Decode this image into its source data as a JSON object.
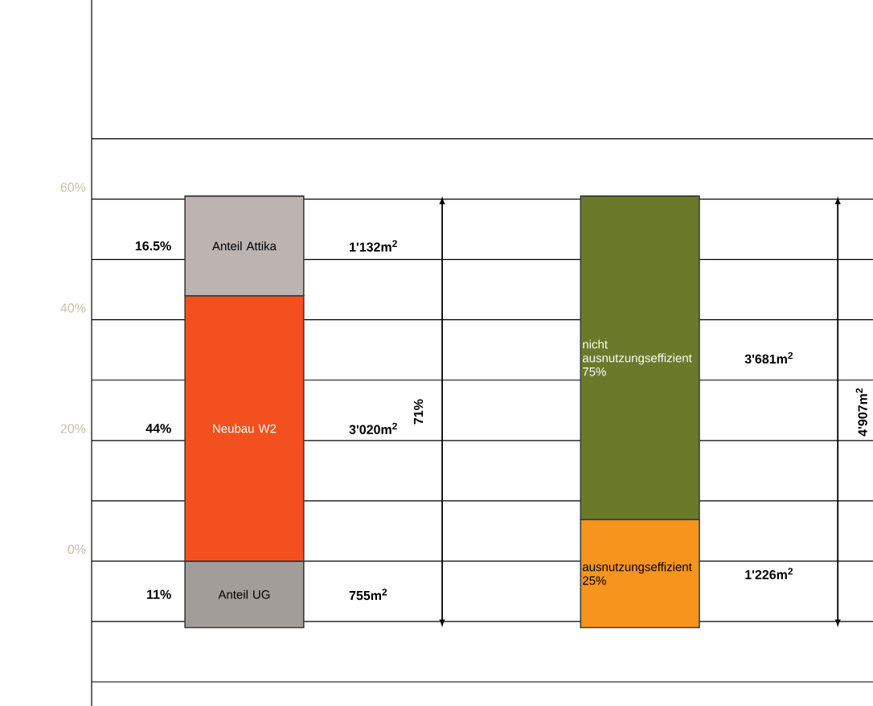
{
  "chart_data": {
    "type": "bar",
    "categories": [
      null,
      null
    ],
    "series": [
      {
        "name": "Anteil UG",
        "color": "#a39d9a",
        "base": [
          -11,
          null
        ],
        "values": [
          11,
          null
        ]
      },
      {
        "name": "Neubau W2",
        "color": "#f2511f",
        "base": [
          0,
          null
        ],
        "values": [
          44,
          null
        ]
      },
      {
        "name": "Anteil Attika",
        "color": "#bbb4b1",
        "base": [
          44,
          null
        ],
        "values": [
          16.5,
          null
        ]
      },
      {
        "name": "ausnutzungseffizient 25%",
        "color": "#f7941d",
        "base": [
          null,
          -11
        ],
        "values": [
          null,
          17.9
        ]
      },
      {
        "name": "nicht ausnutzungseffizient 75%",
        "color": "#6b7a2a",
        "base": [
          null,
          6.9
        ],
        "values": [
          null,
          53.6
        ]
      }
    ],
    "ylim": [
      -24,
      93
    ],
    "yticks": [
      {
        "value": -20,
        "label": null
      },
      {
        "value": -10,
        "label": null
      },
      {
        "value": 0,
        "label": "0%"
      },
      {
        "value": 10,
        "label": null
      },
      {
        "value": 20,
        "label": "20%"
      },
      {
        "value": 30,
        "label": null
      },
      {
        "value": 40,
        "label": "40%"
      },
      {
        "value": 50,
        "label": null
      },
      {
        "value": 60,
        "label": "60%"
      },
      {
        "value": 70,
        "label": null
      }
    ],
    "grid": "y",
    "annotations": [
      "11%",
      "44%",
      "16.5%",
      "755m$^{2}$",
      "3'020m$^{2}$",
      "1'132m$^{2}$",
      "1'226m$^{2}$",
      "3'681m$^{2}$",
      "71%",
      "4'907m$^{2}$"
    ]
  }
}
